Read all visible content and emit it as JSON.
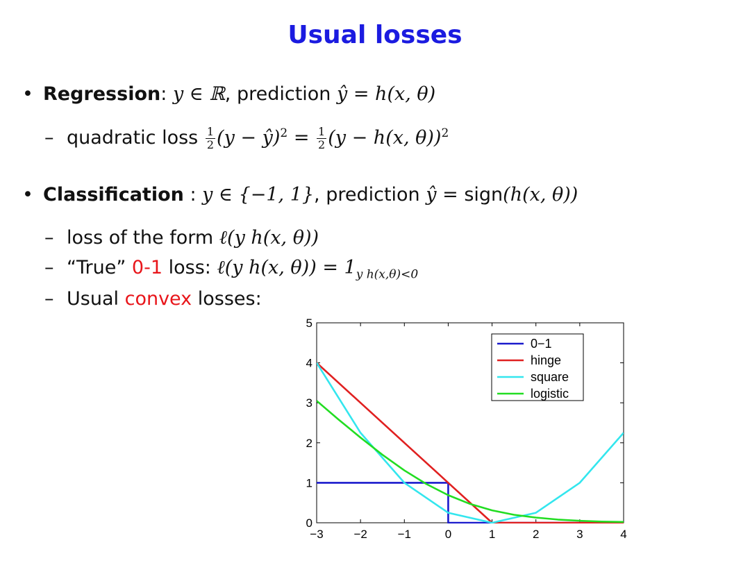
{
  "title": "Usual losses",
  "regression": {
    "bullet": "•",
    "label": "Regression",
    "colon": ":",
    "math1": "y ∈ ℝ",
    "mid": ", prediction",
    "math2": "ŷ = h(x, θ)"
  },
  "quadratic": {
    "dash": "–",
    "text": "quadratic loss",
    "frac_num": "1",
    "frac_den": "2",
    "math_a": "(y − ŷ)",
    "sup_a": "2",
    "eq": " = ",
    "math_b": "(y − h(x, θ))",
    "sup_b": "2"
  },
  "classification": {
    "bullet": "•",
    "label": "Classification",
    "colon": " :",
    "math1": "y ∈ {−1, 1}",
    "mid": ", prediction",
    "math2": "ŷ = ",
    "sign": "sign",
    "math3": "(h(x, θ))"
  },
  "form": {
    "dash": "–",
    "text": "loss of the form",
    "math": "ℓ(y h(x, θ))"
  },
  "true01": {
    "dash": "–",
    "q_open": "“True”",
    "red": "0-1",
    "text": "loss:",
    "math": "ℓ(y h(x, θ)) = 1",
    "sub": "y h(x,θ)<0"
  },
  "convex": {
    "dash": "–",
    "text1": "Usual",
    "red": "convex",
    "text2": "losses:"
  },
  "colors": {
    "title": "#1b1be0",
    "accent_red": "#e8151a",
    "zero_one": "#1a1acc",
    "hinge": "#e02020",
    "square": "#33e6ee",
    "logistic": "#22dd22"
  },
  "chart_data": {
    "type": "line",
    "xlim": [
      -3,
      4
    ],
    "ylim": [
      0,
      5
    ],
    "xticks": [
      -3,
      -2,
      -1,
      0,
      1,
      2,
      3,
      4
    ],
    "yticks": [
      0,
      1,
      2,
      3,
      4,
      5
    ],
    "xtick_labels": [
      "−3",
      "−2",
      "−1",
      "0",
      "1",
      "2",
      "3",
      "4"
    ],
    "ytick_labels": [
      "0",
      "1",
      "2",
      "3",
      "4",
      "5"
    ],
    "grid": false,
    "legend_position": "top-right",
    "series": [
      {
        "name": "0−1",
        "color": "#1a1acc",
        "x": [
          -3,
          0,
          0,
          4
        ],
        "y": [
          1,
          1,
          0,
          0
        ]
      },
      {
        "name": "hinge",
        "color": "#e02020",
        "x": [
          -3,
          -2,
          -1,
          0,
          1,
          2,
          3,
          4
        ],
        "y": [
          4,
          3,
          2,
          1,
          0,
          0,
          0,
          0
        ]
      },
      {
        "name": "square",
        "color": "#33e6ee",
        "x": [
          -3,
          -2,
          -1,
          0,
          1,
          2,
          3,
          4
        ],
        "y": [
          4,
          2.25,
          1,
          0.25,
          0,
          0.25,
          1,
          2.25
        ]
      },
      {
        "name": "logistic",
        "color": "#22dd22",
        "x": [
          -3,
          -2.5,
          -2,
          -1.5,
          -1,
          -0.5,
          0,
          0.5,
          1,
          1.5,
          2,
          2.5,
          3,
          3.5,
          4
        ],
        "y": [
          3.05,
          2.58,
          2.13,
          1.7,
          1.31,
          0.97,
          0.69,
          0.47,
          0.31,
          0.2,
          0.13,
          0.08,
          0.05,
          0.03,
          0.02
        ]
      }
    ]
  }
}
